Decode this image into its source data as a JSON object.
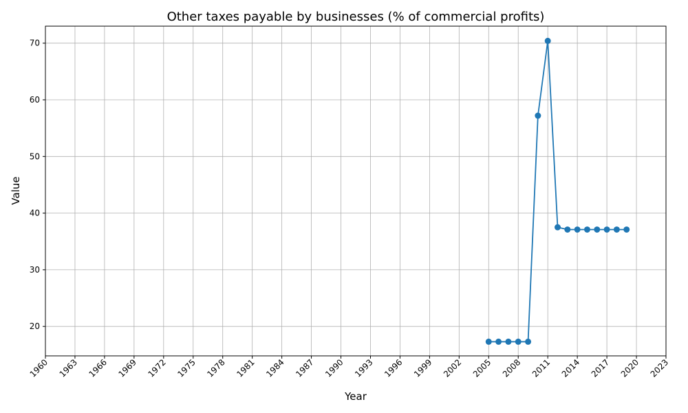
{
  "chart_data": {
    "type": "line",
    "title": "Other taxes payable by businesses (% of commercial profits)",
    "xlabel": "Year",
    "ylabel": "Value",
    "xlim": [
      1960,
      2023
    ],
    "ylim": [
      14.8,
      73
    ],
    "x_ticks": [
      "1960",
      "1963",
      "1966",
      "1969",
      "1972",
      "1975",
      "1978",
      "1981",
      "1984",
      "1987",
      "1990",
      "1993",
      "1996",
      "1999",
      "2002",
      "2005",
      "2008",
      "2011",
      "2014",
      "2017",
      "2020",
      "2023"
    ],
    "y_ticks": [
      20,
      30,
      40,
      50,
      60,
      70
    ],
    "grid": true,
    "series": [
      {
        "color": "#1f77b4",
        "marker": "circle",
        "points": [
          {
            "x": 2005,
            "y": 17.3
          },
          {
            "x": 2006,
            "y": 17.3
          },
          {
            "x": 2007,
            "y": 17.3
          },
          {
            "x": 2008,
            "y": 17.3
          },
          {
            "x": 2009,
            "y": 17.3
          },
          {
            "x": 2010,
            "y": 57.2
          },
          {
            "x": 2011,
            "y": 70.4
          },
          {
            "x": 2012,
            "y": 37.5
          },
          {
            "x": 2013,
            "y": 37.1
          },
          {
            "x": 2014,
            "y": 37.1
          },
          {
            "x": 2015,
            "y": 37.1
          },
          {
            "x": 2016,
            "y": 37.1
          },
          {
            "x": 2017,
            "y": 37.1
          },
          {
            "x": 2018,
            "y": 37.1
          },
          {
            "x": 2019,
            "y": 37.1
          }
        ]
      }
    ]
  }
}
